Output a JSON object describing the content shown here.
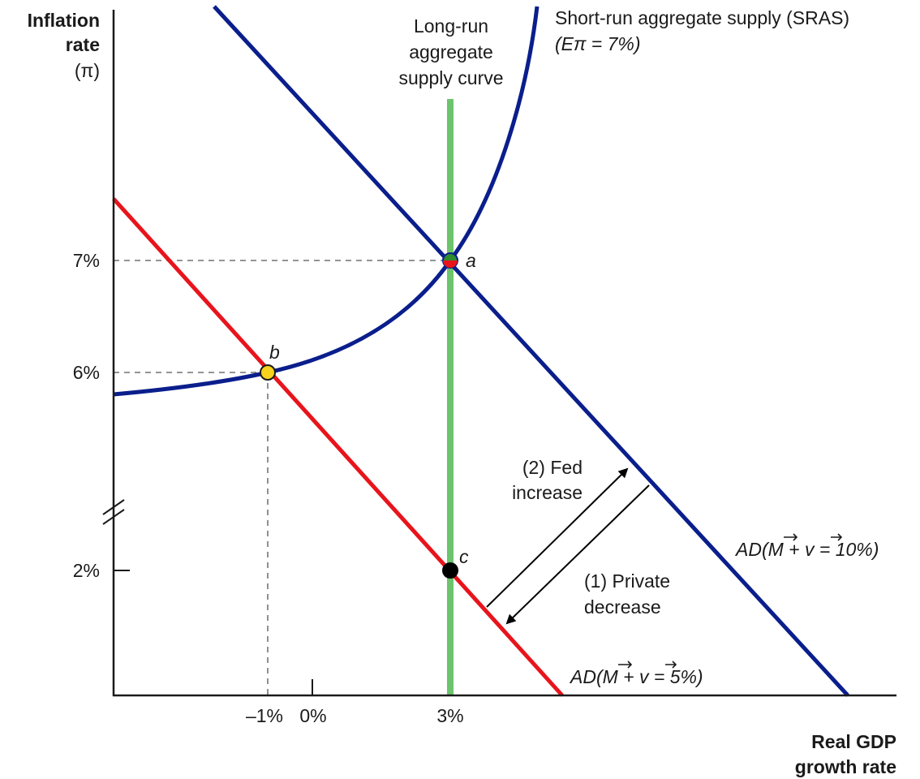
{
  "y_axis": {
    "title_line1": "Inflation",
    "title_line2": "rate",
    "title_line3": "(π)"
  },
  "x_axis": {
    "title_line1": "Real GDP",
    "title_line2": "growth rate"
  },
  "y_ticks": [
    "7%",
    "6%",
    "2%"
  ],
  "x_ticks": [
    "–1%",
    "0%",
    "3%"
  ],
  "lras": {
    "line1": "Long-run",
    "line2": "aggregate",
    "line3": "supply curve"
  },
  "sras": {
    "line1": "Short-run aggregate supply (SRAS)",
    "line2": "(Eπ = 7%)"
  },
  "ad_high": {
    "label": "AD(M + v = 10%)"
  },
  "ad_low": {
    "label": "AD(M + v = 5%)"
  },
  "points": {
    "a": "a",
    "b": "b",
    "c": "c"
  },
  "arrows": {
    "fed_line1": "(2) Fed",
    "fed_line2": "increase",
    "private_line1": "(1) Private",
    "private_line2": "decrease"
  },
  "colors": {
    "ad_high": "#0a1e8c",
    "sras": "#0a1e8c",
    "ad_low": "#e8141c",
    "lras": "#6cc46c",
    "point_b": "#f7d21e",
    "point_c": "#000000"
  }
}
